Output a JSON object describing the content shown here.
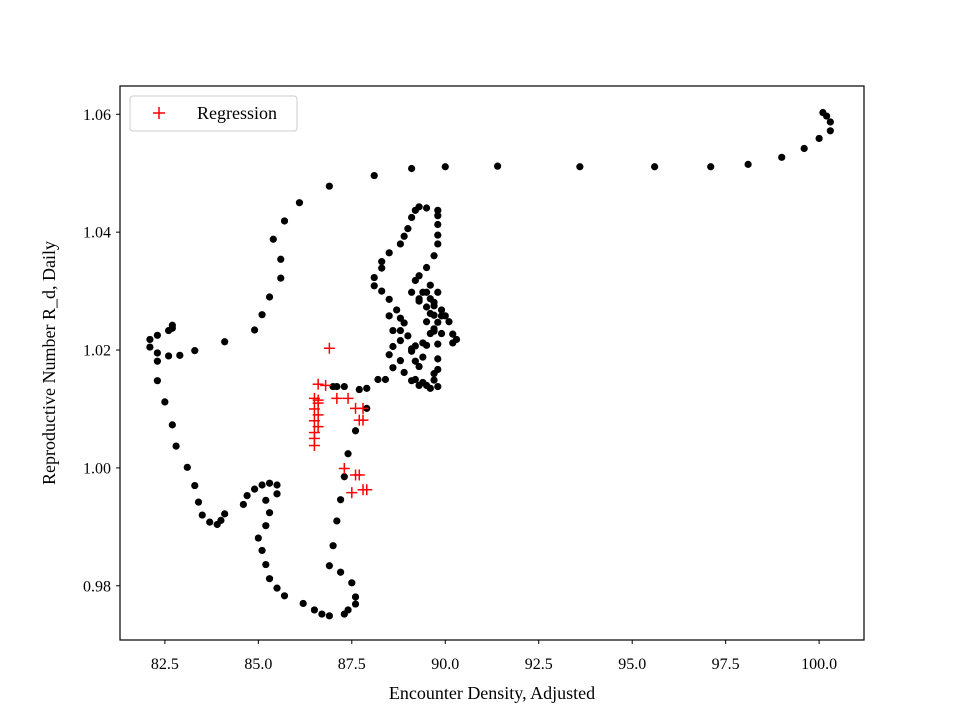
{
  "chart_data": {
    "type": "scatter",
    "title": "",
    "xlabel": "Encounter Density, Adjusted",
    "ylabel": "Reproductive Number R_d, Daily",
    "xlim": [
      81.3,
      101.2
    ],
    "ylim": [
      0.9708,
      1.0648
    ],
    "xticks": [
      82.5,
      85.0,
      87.5,
      90.0,
      92.5,
      95.0,
      97.5,
      100.0
    ],
    "xtick_labels": [
      "82.5",
      "85.0",
      "87.5",
      "90.0",
      "92.5",
      "95.0",
      "97.5",
      "100.0"
    ],
    "yticks": [
      0.98,
      1.0,
      1.02,
      1.04,
      1.06
    ],
    "ytick_labels": [
      "0.98",
      "1.00",
      "1.02",
      "1.04",
      "1.06"
    ],
    "grid": false,
    "legend": {
      "position": "top-left",
      "entries": [
        "Regression"
      ]
    },
    "colors": {
      "observed": "#000000",
      "regression": "#ff0000"
    },
    "series": [
      {
        "marker": "dot",
        "color": "#000000",
        "points": [
          [
            100.1,
            1.0603
          ],
          [
            100.2,
            1.0597
          ],
          [
            100.3,
            1.0587
          ],
          [
            100.3,
            1.0572
          ],
          [
            100.0,
            1.0559
          ],
          [
            99.6,
            1.0542
          ],
          [
            99.0,
            1.0527
          ],
          [
            98.1,
            1.0515
          ],
          [
            97.1,
            1.0511
          ],
          [
            95.6,
            1.0511
          ],
          [
            93.6,
            1.0511
          ],
          [
            91.4,
            1.0512
          ],
          [
            90.0,
            1.0511
          ],
          [
            89.1,
            1.0508
          ],
          [
            88.1,
            1.0496
          ],
          [
            86.9,
            1.0478
          ],
          [
            86.1,
            1.045
          ],
          [
            85.7,
            1.0419
          ],
          [
            85.4,
            1.0388
          ],
          [
            85.6,
            1.0354
          ],
          [
            85.6,
            1.0322
          ],
          [
            85.3,
            1.029
          ],
          [
            85.1,
            1.026
          ],
          [
            84.9,
            1.0234
          ],
          [
            84.1,
            1.0214
          ],
          [
            83.3,
            1.0199
          ],
          [
            82.9,
            1.0191
          ],
          [
            82.6,
            1.019
          ],
          [
            82.3,
            1.0181
          ],
          [
            82.3,
            1.0195
          ],
          [
            82.1,
            1.0205
          ],
          [
            82.1,
            1.0218
          ],
          [
            82.3,
            1.0225
          ],
          [
            82.6,
            1.0233
          ],
          [
            82.7,
            1.0242
          ],
          [
            82.7,
            1.0237
          ],
          [
            82.3,
            1.0148
          ],
          [
            82.5,
            1.0112
          ],
          [
            82.7,
            1.0073
          ],
          [
            82.8,
            1.0037
          ],
          [
            83.1,
            1.0001
          ],
          [
            83.3,
            0.997
          ],
          [
            83.4,
            0.9942
          ],
          [
            83.5,
            0.992
          ],
          [
            83.7,
            0.9908
          ],
          [
            83.9,
            0.9904
          ],
          [
            84.0,
            0.9911
          ],
          [
            84.1,
            0.9922
          ],
          [
            84.6,
            0.9938
          ],
          [
            84.7,
            0.9953
          ],
          [
            84.9,
            0.9964
          ],
          [
            85.1,
            0.9971
          ],
          [
            85.3,
            0.9974
          ],
          [
            85.5,
            0.9971
          ],
          [
            85.5,
            0.9956
          ],
          [
            85.2,
            0.9945
          ],
          [
            85.3,
            0.9924
          ],
          [
            85.2,
            0.9902
          ],
          [
            85.0,
            0.9881
          ],
          [
            85.1,
            0.986
          ],
          [
            85.2,
            0.9836
          ],
          [
            85.3,
            0.9812
          ],
          [
            85.5,
            0.9796
          ],
          [
            85.7,
            0.9783
          ],
          [
            86.2,
            0.977
          ],
          [
            86.5,
            0.9759
          ],
          [
            86.7,
            0.9752
          ],
          [
            86.9,
            0.9749
          ],
          [
            87.3,
            0.9752
          ],
          [
            87.4,
            0.9759
          ],
          [
            87.6,
            0.9769
          ],
          [
            87.6,
            0.9781
          ],
          [
            87.5,
            0.9805
          ],
          [
            87.2,
            0.9823
          ],
          [
            86.9,
            0.9834
          ],
          [
            87.0,
            0.9868
          ],
          [
            87.1,
            0.991
          ],
          [
            87.2,
            0.9946
          ],
          [
            87.3,
            0.9985
          ],
          [
            87.4,
            1.0024
          ],
          [
            87.6,
            1.0063
          ],
          [
            87.9,
            1.0101
          ],
          [
            88.2,
            1.015
          ],
          [
            88.4,
            1.015
          ],
          [
            88.6,
            1.017
          ],
          [
            88.8,
            1.0182
          ],
          [
            89.1,
            1.0198
          ],
          [
            89.2,
            1.0207
          ],
          [
            89.4,
            1.0212
          ],
          [
            89.6,
            1.0228
          ],
          [
            89.7,
            1.0236
          ],
          [
            89.8,
            1.0247
          ],
          [
            89.9,
            1.0258
          ],
          [
            89.9,
            1.0268
          ],
          [
            89.7,
            1.0275
          ],
          [
            89.3,
            1.0283
          ],
          [
            89.1,
            1.0298
          ],
          [
            89.2,
            1.0318
          ],
          [
            89.3,
            1.0326
          ],
          [
            89.5,
            1.034
          ],
          [
            89.7,
            1.036
          ],
          [
            89.8,
            1.038
          ],
          [
            89.8,
            1.0395
          ],
          [
            89.8,
            1.0413
          ],
          [
            89.8,
            1.0428
          ],
          [
            89.8,
            1.0437
          ],
          [
            89.5,
            1.0441
          ],
          [
            89.3,
            1.0443
          ],
          [
            89.2,
            1.0437
          ],
          [
            89.1,
            1.0425
          ],
          [
            89.0,
            1.0406
          ],
          [
            88.9,
            1.0393
          ],
          [
            88.8,
            1.038
          ],
          [
            88.5,
            1.0365
          ],
          [
            88.3,
            1.035
          ],
          [
            88.3,
            1.0339
          ],
          [
            88.1,
            1.0323
          ],
          [
            88.1,
            1.0309
          ],
          [
            88.3,
            1.03
          ],
          [
            88.5,
            1.0286
          ],
          [
            88.7,
            1.0268
          ],
          [
            88.8,
            1.0254
          ],
          [
            88.8,
            1.0233
          ],
          [
            88.8,
            1.0216
          ],
          [
            88.6,
            1.0206
          ],
          [
            88.5,
            1.0192
          ],
          [
            88.9,
            1.0162
          ],
          [
            89.1,
            1.0148
          ],
          [
            89.3,
            1.014
          ],
          [
            89.5,
            1.014
          ],
          [
            89.7,
            1.0149
          ],
          [
            89.8,
            1.0167
          ],
          [
            89.8,
            1.0185
          ],
          [
            89.8,
            1.021
          ],
          [
            89.9,
            1.0228
          ],
          [
            90.1,
            1.0248
          ],
          [
            90.0,
            1.0258
          ],
          [
            90.3,
            1.0218
          ],
          [
            90.2,
            1.0212
          ],
          [
            90.2,
            1.0227
          ],
          [
            89.5,
            1.0248
          ],
          [
            89.6,
            1.0262
          ],
          [
            89.5,
            1.0273
          ],
          [
            89.3,
            1.0287
          ],
          [
            89.5,
            1.0298
          ],
          [
            89.6,
            1.031
          ],
          [
            89.8,
            1.0298
          ],
          [
            89.7,
            1.0281
          ],
          [
            89.4,
            1.0298
          ],
          [
            89.6,
            1.0287
          ],
          [
            89.7,
            1.0259
          ],
          [
            89.7,
            1.0232
          ],
          [
            89.5,
            1.0208
          ],
          [
            89.4,
            1.0188
          ],
          [
            89.3,
            1.0172
          ],
          [
            89.7,
            1.016
          ],
          [
            89.8,
            1.0138
          ],
          [
            89.6,
            1.0135
          ],
          [
            89.4,
            1.0145
          ],
          [
            89.2,
            1.015
          ],
          [
            89.2,
            1.0181
          ],
          [
            89.1,
            1.0202
          ],
          [
            89.0,
            1.0224
          ],
          [
            88.9,
            1.0246
          ],
          [
            88.5,
            1.0258
          ],
          [
            88.6,
            1.0233
          ],
          [
            87.3,
            1.0138
          ],
          [
            87.1,
            1.0138
          ],
          [
            87.0,
            1.0138
          ],
          [
            87.7,
            1.0133
          ],
          [
            87.9,
            1.0135
          ]
        ]
      },
      {
        "name": "Regression",
        "marker": "plus",
        "color": "#ff0000",
        "points": [
          [
            86.9,
            1.0203
          ],
          [
            86.6,
            1.0142
          ],
          [
            86.8,
            1.014
          ],
          [
            86.5,
            1.0118
          ],
          [
            86.6,
            1.011
          ],
          [
            86.5,
            1.01
          ],
          [
            86.6,
            1.009
          ],
          [
            86.5,
            1.008
          ],
          [
            86.6,
            1.007
          ],
          [
            86.5,
            1.006
          ],
          [
            86.5,
            1.005
          ],
          [
            86.6,
            1.0115
          ],
          [
            86.5,
            1.0038
          ],
          [
            87.1,
            1.0118
          ],
          [
            87.4,
            1.0118
          ],
          [
            87.6,
            1.0101
          ],
          [
            87.8,
            1.0101
          ],
          [
            87.8,
            1.0081
          ],
          [
            87.7,
            1.0081
          ],
          [
            87.3,
            0.9999
          ],
          [
            87.6,
            0.9988
          ],
          [
            87.7,
            0.9988
          ],
          [
            87.5,
            0.9958
          ],
          [
            87.8,
            0.9963
          ],
          [
            87.9,
            0.9963
          ]
        ]
      }
    ]
  }
}
